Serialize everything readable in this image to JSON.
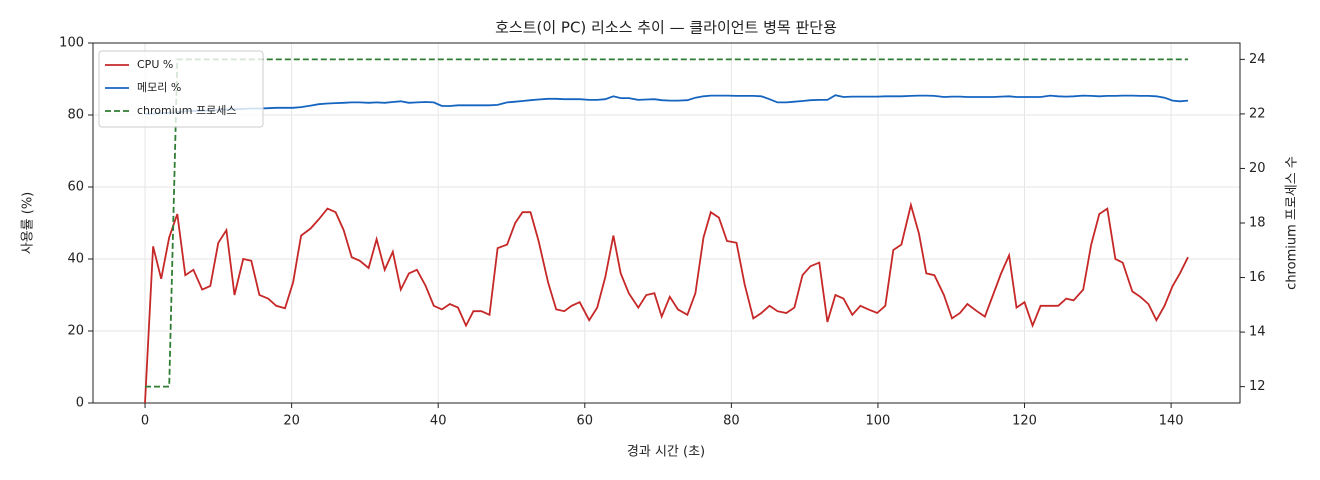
{
  "chart_data": {
    "type": "line",
    "title": "호스트(이 PC) 리소스 추이 — 클라이언트 병목 판단용",
    "xlabel": "경과 시간 (초)",
    "ylabel": "사용률 (%)",
    "y2label": "chromium 프로세스 수",
    "x": [
      0,
      1.1,
      2.2,
      3.3,
      4.4,
      5.5,
      6.6,
      7.8,
      8.9,
      10,
      11.1,
      12.2,
      13.4,
      14.5,
      15.6,
      16.8,
      17.9,
      19.1,
      20.2,
      21.3,
      22.6,
      23.7,
      24.9,
      26,
      27.1,
      28.2,
      29.3,
      30.5,
      31.6,
      32.7,
      33.8,
      34.9,
      36,
      37.1,
      38.3,
      39.4,
      40.5,
      41.6,
      42.7,
      43.8,
      44.8,
      45.9,
      47,
      48.1,
      49.4,
      50.5,
      51.5,
      52.6,
      53.7,
      55,
      56.1,
      57.2,
      58.2,
      59.3,
      60.6,
      61.7,
      62.8,
      63.9,
      64.9,
      66,
      67.3,
      68.4,
      69.5,
      70.5,
      71.6,
      72.7,
      74,
      75.1,
      76.2,
      77.2,
      78.3,
      79.4,
      80.7,
      81.8,
      83,
      84.1,
      85.2,
      86.3,
      87.5,
      88.6,
      89.7,
      90.8,
      92,
      93.1,
      94.2,
      95.3,
      96.5,
      97.6,
      98.7,
      99.9,
      101,
      102.1,
      103.2,
      104.5,
      105.6,
      106.6,
      107.7,
      109,
      110.1,
      111.2,
      112.2,
      113.5,
      114.6,
      115.7,
      116.8,
      117.9,
      118.9,
      120,
      121.1,
      122.2,
      123.5,
      124.6,
      125.7,
      126.7,
      128,
      129.1,
      130.2,
      131.3,
      132.4,
      133.4,
      134.7,
      135.8,
      136.9,
      138,
      139.1,
      140.2,
      141.2,
      142.3
    ],
    "series": [
      {
        "name": "CPU %",
        "color": "#c62828",
        "style": "solid",
        "values": [
          0,
          43.5,
          34.5,
          46,
          52.5,
          35.5,
          37,
          31.5,
          32.5,
          44.5,
          48,
          30,
          40,
          39.5,
          30,
          29,
          27,
          26.3,
          33.5,
          46.5,
          48.5,
          51,
          54,
          53,
          48,
          40.5,
          39.5,
          37.5,
          45.5,
          37,
          42,
          31.5,
          36,
          37,
          32.5,
          27,
          26,
          27.5,
          26.5,
          21.5,
          25.5,
          25.5,
          24.5,
          43,
          44,
          50,
          53,
          53,
          45,
          33.5,
          26,
          25.5,
          27,
          28,
          23,
          26.5,
          35,
          46.5,
          36,
          30.5,
          26.5,
          30,
          30.5,
          24,
          29.5,
          26,
          24.5,
          30.5,
          46,
          53,
          51.5,
          45,
          44.5,
          33,
          23.5,
          25,
          27,
          25.5,
          25,
          26.5,
          35.5,
          38,
          39,
          22.5,
          30,
          29,
          24.5,
          27,
          26,
          25,
          27,
          42.5,
          44,
          55,
          47,
          36,
          35.5,
          30,
          23.5,
          25,
          27.5,
          25.5,
          24,
          30,
          36,
          41,
          26.5,
          28,
          21.5,
          27,
          27,
          27,
          29,
          28.5,
          31.5,
          44,
          52.5,
          54,
          40,
          39,
          31,
          29.5,
          27.5,
          23,
          27,
          32.5,
          36,
          40.5
        ]
      },
      {
        "name": "메모리 %",
        "color": "#1565c0",
        "style": "solid",
        "values": [
          80.3,
          80.4,
          80.5,
          80.6,
          80.8,
          81,
          81.1,
          81.2,
          81.3,
          81.4,
          81.5,
          81.6,
          81.7,
          81.8,
          81.8,
          81.9,
          82,
          82,
          82,
          82.2,
          82.6,
          83,
          83.2,
          83.3,
          83.4,
          83.5,
          83.5,
          83.4,
          83.5,
          83.4,
          83.6,
          83.8,
          83.4,
          83.5,
          83.6,
          83.5,
          82.5,
          82.5,
          82.7,
          82.7,
          82.7,
          82.7,
          82.7,
          82.8,
          83.5,
          83.7,
          83.9,
          84.1,
          84.3,
          84.5,
          84.5,
          84.4,
          84.4,
          84.4,
          84.2,
          84.2,
          84.4,
          85.2,
          84.7,
          84.7,
          84.2,
          84.3,
          84.4,
          84.1,
          84,
          84,
          84.1,
          84.8,
          85.2,
          85.4,
          85.4,
          85.4,
          85.3,
          85.3,
          85.3,
          85.2,
          84.4,
          83.5,
          83.5,
          83.7,
          83.9,
          84.1,
          84.2,
          84.2,
          85.5,
          85,
          85.1,
          85.1,
          85.1,
          85.1,
          85.2,
          85.2,
          85.2,
          85.3,
          85.4,
          85.4,
          85.3,
          85,
          85.1,
          85.1,
          85,
          85,
          85,
          85,
          85.1,
          85.2,
          85,
          85,
          85,
          85,
          85.4,
          85.2,
          85.1,
          85.2,
          85.4,
          85.3,
          85.2,
          85.3,
          85.3,
          85.4,
          85.4,
          85.3,
          85.3,
          85.2,
          84.8,
          84,
          83.8,
          84
        ]
      },
      {
        "name": "chromium 프로세스",
        "color": "#2e7d32",
        "style": "dashed",
        "axis": "y2",
        "values": [
          12,
          12,
          12,
          12,
          24,
          24,
          24,
          24,
          24,
          24,
          24,
          24,
          24,
          24,
          24,
          24,
          24,
          24,
          24,
          24,
          24,
          24,
          24,
          24,
          24,
          24,
          24,
          24,
          24,
          24,
          24,
          24,
          24,
          24,
          24,
          24,
          24,
          24,
          24,
          24,
          24,
          24,
          24,
          24,
          24,
          24,
          24,
          24,
          24,
          24,
          24,
          24,
          24,
          24,
          24,
          24,
          24,
          24,
          24,
          24,
          24,
          24,
          24,
          24,
          24,
          24,
          24,
          24,
          24,
          24,
          24,
          24,
          24,
          24,
          24,
          24,
          24,
          24,
          24,
          24,
          24,
          24,
          24,
          24,
          24,
          24,
          24,
          24,
          24,
          24,
          24,
          24,
          24,
          24,
          24,
          24,
          24,
          24,
          24,
          24,
          24,
          24,
          24,
          24,
          24,
          24,
          24,
          24,
          24,
          24,
          24,
          24,
          24,
          24,
          24,
          24,
          24,
          24,
          24,
          24,
          24,
          24,
          24,
          24,
          24,
          24,
          24,
          24
        ]
      }
    ],
    "xlim": [
      -7.1,
      149.4
    ],
    "ylim": [
      0,
      100
    ],
    "y2lim": [
      11.4,
      24.6
    ],
    "xticks": [
      0,
      20,
      40,
      60,
      80,
      100,
      120,
      140
    ],
    "yticks": [
      0,
      20,
      40,
      60,
      80,
      100
    ],
    "y2ticks": [
      12,
      14,
      16,
      18,
      20,
      22,
      24
    ],
    "grid": true,
    "legend": "upper left"
  }
}
